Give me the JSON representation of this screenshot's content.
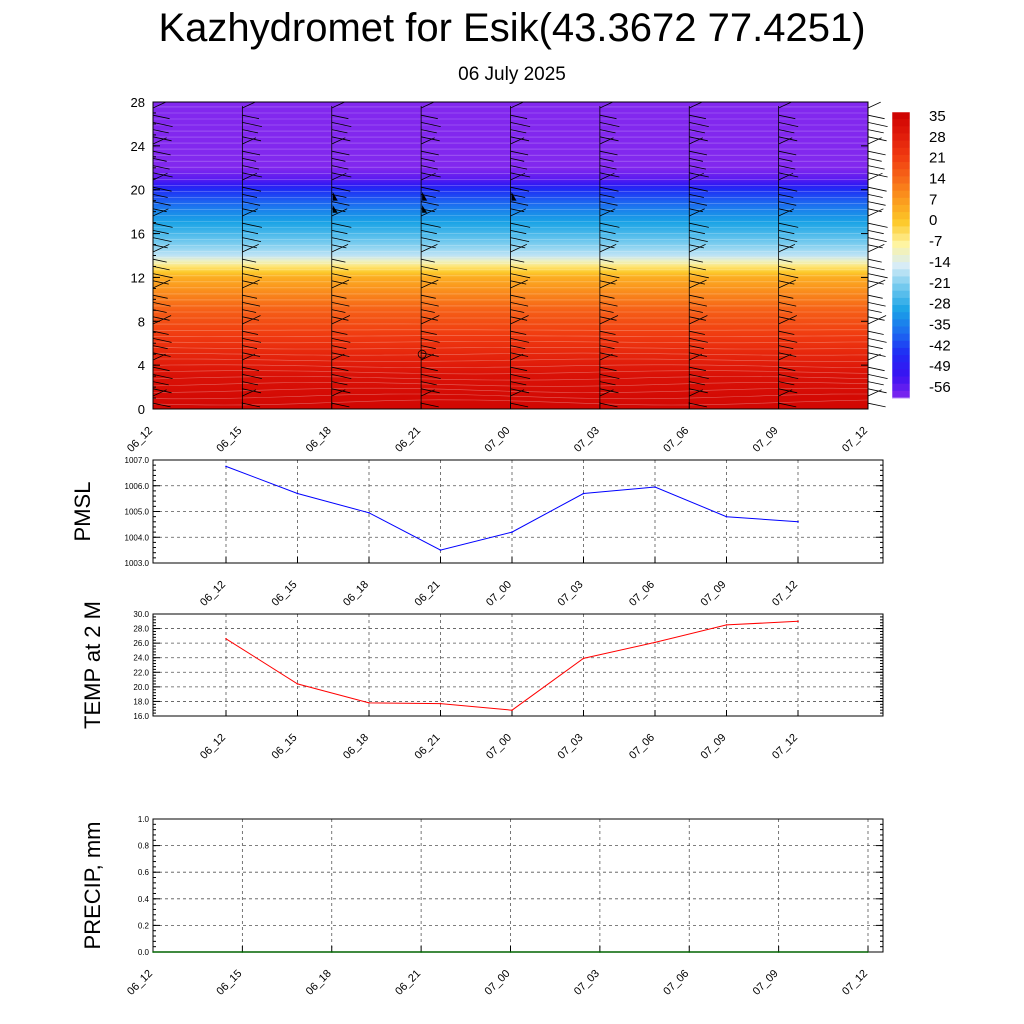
{
  "header": {
    "title": "Kazhydromet for Esik(43.3672 77.4251)",
    "subtitle": "06 July 2025"
  },
  "chart_data": [
    {
      "type": "heatmap",
      "name": "temperature-cross-section",
      "time_labels": [
        "06_12",
        "06_15",
        "06_18",
        "06_21",
        "07_00",
        "07_03",
        "07_06",
        "07_09",
        "07_12"
      ],
      "y_ticks": [
        "0",
        "4",
        "8",
        "12",
        "16",
        "20",
        "24",
        "28"
      ],
      "ylim": [
        0,
        28
      ],
      "colorbar_labels": [
        "35",
        "28",
        "21",
        "14",
        "7",
        "0",
        "-7",
        "-14",
        "-21",
        "-28",
        "-35",
        "-42",
        "-49",
        "-56"
      ],
      "color_stops": [
        "#cc0000",
        "#e01a0a",
        "#f03a10",
        "#f76818",
        "#fb9a1e",
        "#fdc828",
        "#fef4a0",
        "#d6ecf7",
        "#6fc8ee",
        "#1aa3e6",
        "#1c6df0",
        "#1f2cf5",
        "#3a12f2",
        "#8228ee"
      ],
      "level_profile": [
        {
          "y": 0,
          "value": 33
        },
        {
          "y": 3,
          "value": 30
        },
        {
          "y": 6,
          "value": 22
        },
        {
          "y": 9,
          "value": 14
        },
        {
          "y": 12,
          "value": 2
        },
        {
          "y": 13.2,
          "value": -9
        },
        {
          "y": 14,
          "value": -19
        },
        {
          "y": 16,
          "value": -28
        },
        {
          "y": 18,
          "value": -36
        },
        {
          "y": 20,
          "value": -47
        },
        {
          "y": 21,
          "value": -58
        },
        {
          "y": 22,
          "value": -62
        },
        {
          "y": 28,
          "value": -62
        }
      ],
      "grid": false,
      "wind_barbs": true
    },
    {
      "type": "line",
      "name": "PMSL",
      "ylabel": "PMSL",
      "x": [
        "06_12",
        "06_15",
        "06_18",
        "06_21",
        "07_00",
        "07_03",
        "07_06",
        "07_09",
        "07_12"
      ],
      "y_ticks": [
        "1003.0",
        "1004.0",
        "1005.0",
        "1006.0",
        "1007.0"
      ],
      "ylim": [
        1003,
        1007
      ],
      "series": [
        {
          "values": [
            1006.75,
            1005.7,
            1004.95,
            1003.5,
            1004.2,
            1005.7,
            1005.95,
            1004.8,
            1004.6
          ],
          "color": "#0000ff"
        }
      ],
      "grid": true
    },
    {
      "type": "line",
      "name": "TEMP at 2 M",
      "ylabel": "TEMP at 2 M",
      "x": [
        "06_12",
        "06_15",
        "06_18",
        "06_21",
        "07_00",
        "07_03",
        "07_06",
        "07_09",
        "07_12"
      ],
      "y_ticks": [
        "16.0",
        "18.0",
        "20.0",
        "22.0",
        "24.0",
        "26.0",
        "28.0",
        "30.0"
      ],
      "ylim": [
        16,
        30
      ],
      "series": [
        {
          "values": [
            26.6,
            20.4,
            17.8,
            17.7,
            16.8,
            23.9,
            26.1,
            28.5,
            29.0
          ],
          "color": "#ff0000"
        }
      ],
      "grid": true
    },
    {
      "type": "line",
      "name": "PRECIP, mm",
      "ylabel": "PRECIP, mm",
      "x": [
        "06_12",
        "06_15",
        "06_18",
        "06_21",
        "07_00",
        "07_03",
        "07_06",
        "07_09",
        "07_12"
      ],
      "y_ticks": [
        "0.0",
        "0.2",
        "0.4",
        "0.6",
        "0.8",
        "1.0"
      ],
      "ylim": [
        0,
        1
      ],
      "series": [
        {
          "values": [
            0,
            0,
            0,
            0,
            0,
            0,
            0,
            0,
            0
          ],
          "color": "#006400"
        }
      ],
      "grid": true
    }
  ]
}
